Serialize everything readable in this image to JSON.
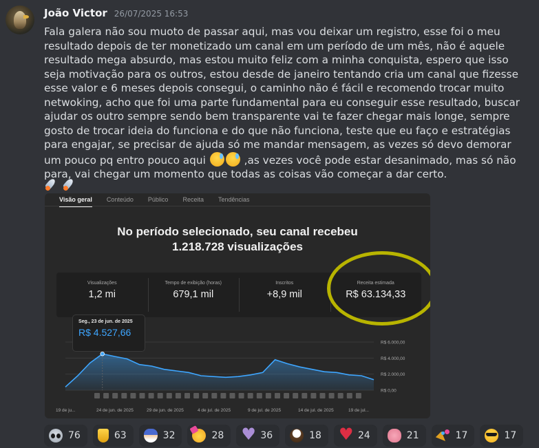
{
  "message": {
    "username": "João Victor",
    "timestamp": "26/07/2025 16:53",
    "text_part1": "Fala galera não sou muoto de passar aqui, mas vou deixar um registro, esse foi o meu resultado depois de ter monetizado um canal em um período de um mês, não é aquele resultado mega absurdo, mas estou muito feliz com a minha conquista, espero que isso seja motivação para os outros, estou desde de janeiro tentando cria um canal que fizesse esse valor e 6 meses depois consegui, o caminho não é fácil e recomendo trocar muito netwoking, acho que foi uma parte fundamental para eu conseguir esse resultado, buscar ajudar os outro sempre sendo bem transparente vai te fazer chegar mais longe, sempre gosto de trocar ideia do funciona e do que não funciona, teste que eu faço e estratégias para engajar, se precisar de ajuda só me mandar mensagem, as vezes só devo demorar um pouco pq entro pouco aqui",
    "text_part2": ",as vezes você pode estar desanimado, mas só não para, vai chegar um momento que todas as coisas vão começar a dar certo."
  },
  "attachment": {
    "tabs": [
      "Visão geral",
      "Conteúdo",
      "Público",
      "Receita",
      "Tendências"
    ],
    "headline_line1": "No período selecionado, seu canal recebeu",
    "headline_line2": "1.218.728 visualizações",
    "stats": [
      {
        "label": "Visualizações",
        "value": "1,2 mi"
      },
      {
        "label": "Tempo de exibição (horas)",
        "value": "679,1 mil"
      },
      {
        "label": "Inscritos",
        "value": "+8,9 mil"
      },
      {
        "label": "Receita estimada",
        "value": "R$ 63.134,33"
      }
    ],
    "tooltip": {
      "date": "Seg., 23 de jun. de 2025",
      "value": "R$ 4.527,66"
    },
    "highlight_color": "#b8b400"
  },
  "chart_data": {
    "type": "area",
    "y_tick_labels": [
      "R$ 6.000,00",
      "R$ 4.000,00",
      "R$ 2.000,00",
      "R$ 0,00"
    ],
    "ylim": [
      0,
      6000
    ],
    "x_tick_labels": [
      "19 de ju...",
      "24 de jun. de 2025",
      "29 de jun. de 2025",
      "4 de jul. de 2025",
      "9 de jul. de 2025",
      "14 de jul. de 2025",
      "19 de jul..."
    ],
    "values": [
      400,
      1800,
      3400,
      4527,
      4200,
      3900,
      3200,
      3000,
      2600,
      2400,
      2200,
      1800,
      1700,
      1600,
      1700,
      1900,
      2200,
      3800,
      3300,
      2900,
      2600,
      2300,
      2200,
      1900,
      1800,
      1300
    ],
    "line_color": "#3ea6ff",
    "grid": true
  },
  "reactions": [
    {
      "icon": "alien-icon",
      "count": "76"
    },
    {
      "icon": "trophy-icon",
      "count": "63"
    },
    {
      "icon": "mage-icon",
      "count": "32"
    },
    {
      "icon": "partying-face-icon",
      "count": "28"
    },
    {
      "icon": "purple-heart-icon",
      "count": "36"
    },
    {
      "icon": "eagle-icon",
      "count": "18"
    },
    {
      "icon": "red-heart-icon",
      "count": "24"
    },
    {
      "icon": "brain-icon",
      "count": "21"
    },
    {
      "icon": "party-popper-icon",
      "count": "17"
    },
    {
      "icon": "sunglasses-face-icon",
      "count": "17"
    }
  ]
}
